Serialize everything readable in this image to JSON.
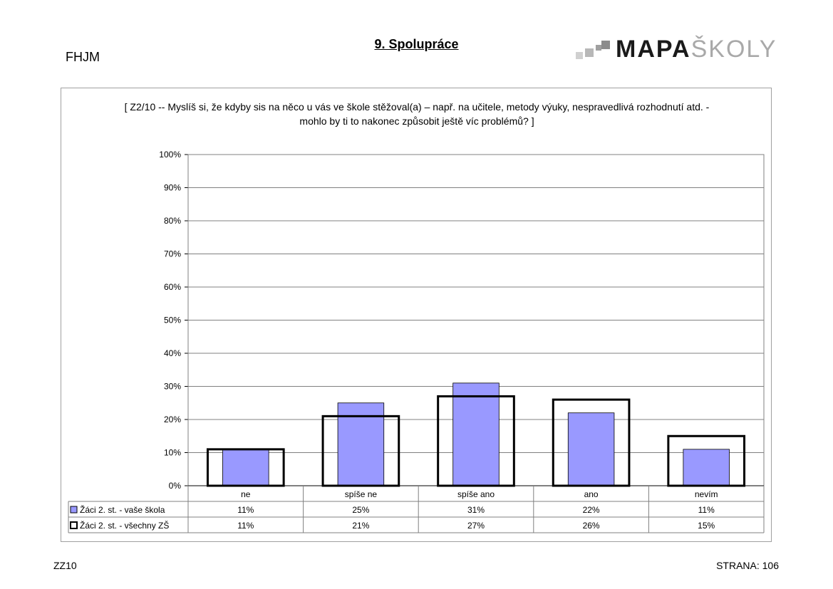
{
  "header": {
    "school_code": "FHJM",
    "title": "9. Spolupráce",
    "logo_text_dark": "MAPA",
    "logo_text_light": "ŠKOLY"
  },
  "footer": {
    "code": "ZZ10",
    "page_label": "STRANA: 106"
  },
  "colors": {
    "series_school": "#9999ff",
    "series_all": "#ffffff",
    "outline": "#000000",
    "grid": "#808080"
  },
  "chart_data": {
    "type": "bar",
    "title": "[ Z2/10 -- Myslíš si, že kdyby sis na něco u vás ve škole stěžoval(a) – např. na učitele, metody výuky, nespravedlivá rozhodnutí atd. - mohlo by ti to nakonec způsobit ještě víc problémů? ]",
    "categories": [
      "ne",
      "spíše ne",
      "spíše ano",
      "ano",
      "nevím"
    ],
    "series": [
      {
        "name": "Žáci 2. st. - vaše škola",
        "values": [
          11,
          25,
          31,
          22,
          11
        ],
        "labels": [
          "11%",
          "25%",
          "31%",
          "22%",
          "11%"
        ]
      },
      {
        "name": "Žáci 2. st. - všechny ZŠ",
        "values": [
          11,
          21,
          27,
          26,
          15
        ],
        "labels": [
          "11%",
          "21%",
          "27%",
          "26%",
          "15%"
        ]
      }
    ],
    "y_ticks": [
      "0%",
      "10%",
      "20%",
      "30%",
      "40%",
      "50%",
      "60%",
      "70%",
      "80%",
      "90%",
      "100%"
    ],
    "ylim": [
      0,
      100
    ],
    "grid": true,
    "legend": "data-table"
  }
}
